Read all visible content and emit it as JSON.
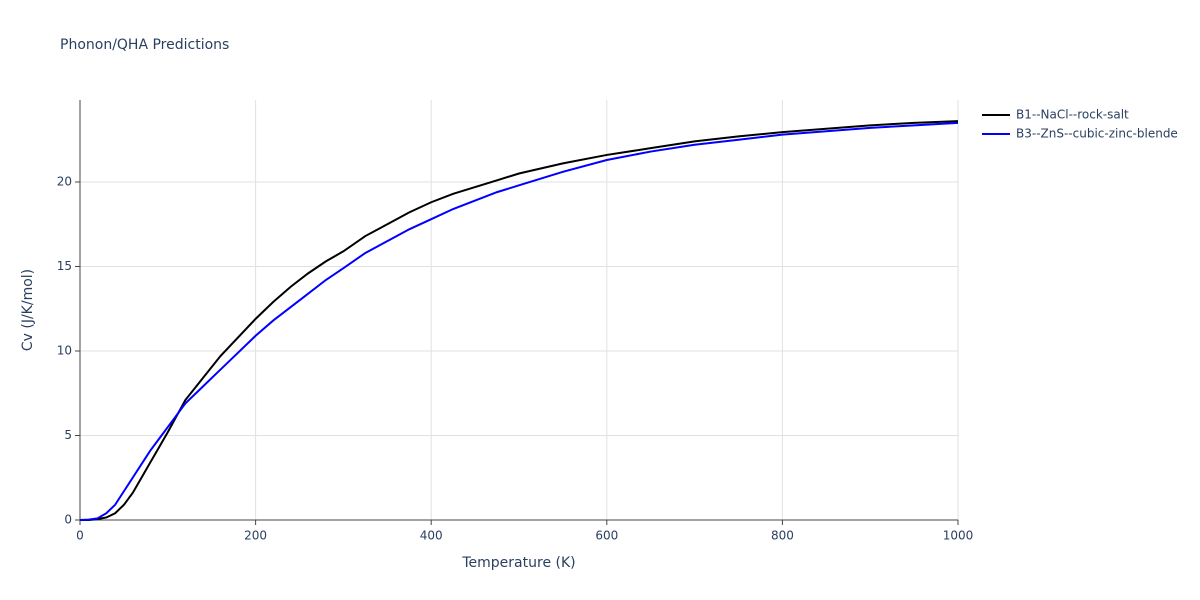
{
  "chart_data": {
    "type": "line",
    "title": "Phonon/QHA Predictions",
    "x_label": "Temperature (K)",
    "y_label": "Cv (J/K/mol)",
    "x": [
      0,
      10,
      20,
      30,
      40,
      50,
      60,
      70,
      80,
      90,
      100,
      120,
      140,
      160,
      180,
      200,
      220,
      240,
      260,
      280,
      300,
      325,
      350,
      375,
      400,
      425,
      450,
      475,
      500,
      550,
      600,
      650,
      700,
      750,
      800,
      850,
      900,
      950,
      1000
    ],
    "series": [
      {
        "name": "B1--NaCl--rock-salt",
        "color": "#000000",
        "values": [
          0,
          0,
          0.05,
          0.15,
          0.4,
          0.9,
          1.6,
          2.5,
          3.4,
          4.3,
          5.2,
          7.1,
          8.4,
          9.7,
          10.8,
          11.9,
          12.9,
          13.8,
          14.6,
          15.3,
          15.9,
          16.8,
          17.5,
          18.2,
          18.8,
          19.3,
          19.7,
          20.1,
          20.5,
          21.1,
          21.6,
          22.0,
          22.4,
          22.7,
          22.95,
          23.15,
          23.35,
          23.5,
          23.6
        ]
      },
      {
        "name": "B3--ZnS--cubic-zinc-blende",
        "color": "#0000ff",
        "values": [
          0,
          0.02,
          0.1,
          0.4,
          0.9,
          1.7,
          2.5,
          3.3,
          4.1,
          4.8,
          5.5,
          6.9,
          7.9,
          8.9,
          9.9,
          10.9,
          11.8,
          12.6,
          13.4,
          14.2,
          14.9,
          15.8,
          16.5,
          17.2,
          17.8,
          18.4,
          18.9,
          19.4,
          19.8,
          20.6,
          21.3,
          21.8,
          22.2,
          22.5,
          22.8,
          23.0,
          23.2,
          23.35,
          23.5
        ]
      }
    ],
    "xlim": [
      0,
      1000
    ],
    "ylim": [
      0,
      24.85
    ],
    "xticks": [
      0,
      200,
      400,
      600,
      800,
      1000
    ],
    "yticks": [
      0,
      5,
      10,
      15,
      20
    ],
    "grid": true,
    "legend": "right"
  }
}
